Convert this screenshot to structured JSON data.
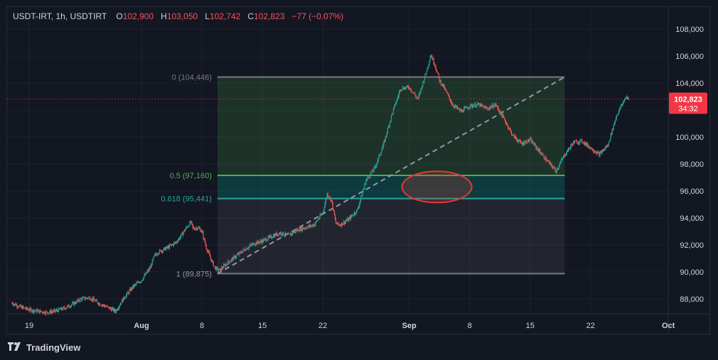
{
  "legend": {
    "symbol": "USDT-IRT, 1h, USDTIRT",
    "o_label": "O",
    "o_value": "102,900",
    "h_label": "H",
    "h_value": "103,050",
    "l_label": "L",
    "l_value": "102,742",
    "c_label": "C",
    "c_value": "102,823",
    "change": "−77 (−0.07%)"
  },
  "brand": {
    "name": "TradingView",
    "icon": "tradingview-logo-icon"
  },
  "price_tag": {
    "price": "102,823",
    "countdown": "34:32"
  },
  "colors": {
    "up": "#26a69a",
    "down": "#ef5350",
    "fib_green": "#4caf50",
    "fib_teal": "#26a69a",
    "price_line": "#f23645",
    "annotation": "#e53935"
  },
  "chart_data": {
    "type": "candlestick",
    "title": "",
    "xlabel": "",
    "ylabel": "",
    "ylim": [
      87000,
      109000
    ],
    "y_ticks": [
      "108,000",
      "106,000",
      "104,000",
      "102,000",
      "100,000",
      "98,000",
      "96,000",
      "94,000",
      "92,000",
      "90,000",
      "88,000"
    ],
    "y_tick_values": [
      108000,
      106000,
      104000,
      102000,
      100000,
      98000,
      96000,
      94000,
      92000,
      90000,
      88000
    ],
    "x_ticks": [
      "19",
      "Aug",
      "8",
      "15",
      "22",
      "Sep",
      "8",
      "15",
      "22",
      "Oct"
    ],
    "x_tick_days": [
      -13,
      0,
      7,
      14,
      21,
      31,
      38,
      45,
      52,
      61
    ],
    "x_range_days": [
      -15,
      62
    ],
    "price_series": {
      "note_unit": "days from Aug 1",
      "points": [
        [
          -15,
          87700
        ],
        [
          -14,
          87400
        ],
        [
          -13,
          87200
        ],
        [
          -12,
          87100
        ],
        [
          -11,
          87000
        ],
        [
          -10,
          87100
        ],
        [
          -9,
          87300
        ],
        [
          -8,
          87600
        ],
        [
          -7,
          88000
        ],
        [
          -6,
          88100
        ],
        [
          -5,
          87700
        ],
        [
          -4,
          87400
        ],
        [
          -3,
          87100
        ],
        [
          -2,
          88100
        ],
        [
          -1,
          88900
        ],
        [
          0,
          89400
        ],
        [
          1,
          90300
        ],
        [
          1.5,
          91200
        ],
        [
          2,
          91500
        ],
        [
          3,
          91800
        ],
        [
          4,
          92200
        ],
        [
          4.5,
          92600
        ],
        [
          5,
          93100
        ],
        [
          5.7,
          93700
        ],
        [
          6,
          93200
        ],
        [
          6.5,
          93300
        ],
        [
          7,
          93000
        ],
        [
          7.5,
          91800
        ],
        [
          8,
          91000
        ],
        [
          8.5,
          90300
        ],
        [
          9,
          90100
        ],
        [
          10,
          90700
        ],
        [
          11,
          91200
        ],
        [
          12,
          91700
        ],
        [
          13,
          92100
        ],
        [
          14,
          92300
        ],
        [
          15,
          92600
        ],
        [
          16,
          92900
        ],
        [
          17,
          92700
        ],
        [
          18,
          93100
        ],
        [
          19,
          93300
        ],
        [
          20,
          93500
        ],
        [
          21,
          94400
        ],
        [
          21.5,
          95800
        ],
        [
          22,
          95300
        ],
        [
          22.5,
          93600
        ],
        [
          23,
          93500
        ],
        [
          24,
          93900
        ],
        [
          25,
          94600
        ],
        [
          26,
          96800
        ],
        [
          27,
          97700
        ],
        [
          28,
          99400
        ],
        [
          29,
          101700
        ],
        [
          30,
          103600
        ],
        [
          31,
          103700
        ],
        [
          32,
          102800
        ],
        [
          33,
          104900
        ],
        [
          33.5,
          106100
        ],
        [
          34,
          105300
        ],
        [
          34.5,
          104200
        ],
        [
          35,
          103700
        ],
        [
          36,
          102400
        ],
        [
          37,
          101900
        ],
        [
          38,
          102300
        ],
        [
          39,
          102400
        ],
        [
          40,
          102100
        ],
        [
          41,
          102400
        ],
        [
          42,
          101300
        ],
        [
          43,
          100100
        ],
        [
          44,
          99500
        ],
        [
          45,
          99800
        ],
        [
          46,
          99000
        ],
        [
          47,
          98200
        ],
        [
          48,
          97500
        ],
        [
          49,
          98700
        ],
        [
          50,
          99600
        ],
        [
          51,
          99700
        ],
        [
          52,
          99200
        ],
        [
          53,
          98700
        ],
        [
          54,
          99400
        ],
        [
          55,
          101600
        ],
        [
          56,
          102900
        ],
        [
          56.5,
          102823
        ]
      ]
    },
    "fib_retracement": {
      "levels": [
        {
          "label": "0 (104,446)",
          "ratio": 0,
          "price": 104446
        },
        {
          "label": "0.5 (97,160)",
          "ratio": 0.5,
          "price": 97160
        },
        {
          "label": "0.618 (95,441)",
          "ratio": 0.618,
          "price": 95441
        },
        {
          "label": "1 (89,875)",
          "ratio": 1,
          "price": 89875
        }
      ],
      "start_day": 8.8,
      "end_day": 49,
      "trend_line": {
        "from": [
          8.8,
          89875
        ],
        "to": [
          49,
          104446
        ]
      }
    },
    "annotation": {
      "shape": "ellipse",
      "center_day": 34.2,
      "center_price": 96300
    },
    "last_price": 102823
  }
}
